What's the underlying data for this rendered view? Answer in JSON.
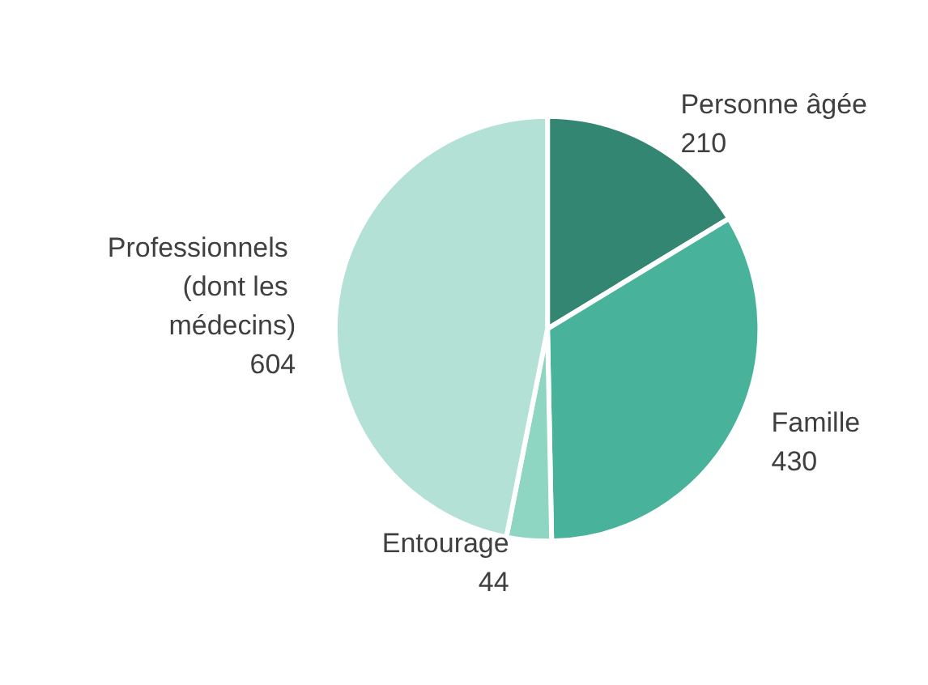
{
  "chart_data": {
    "type": "pie",
    "categories": [
      "Personne âgée",
      "Famille",
      "Entourage",
      "Professionnels (dont les médecins)"
    ],
    "values": [
      210,
      430,
      44,
      604
    ],
    "colors": [
      "#338672",
      "#48b39a",
      "#8ed5c2",
      "#b3e1d6"
    ],
    "data_labels": true,
    "legend": false
  }
}
